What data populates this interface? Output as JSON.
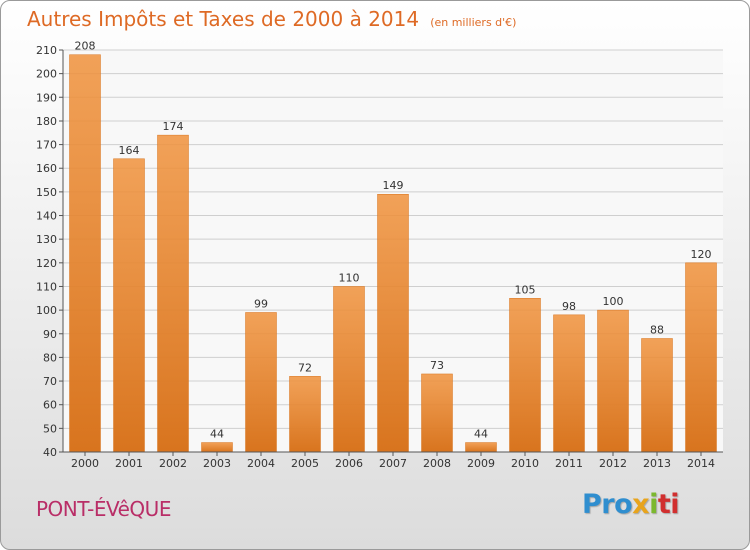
{
  "chart_data": {
    "type": "bar",
    "title": "Autres Impôts et Taxes de 2000 à 2014",
    "title_unit": "(en milliers d'€)",
    "categories": [
      "2000",
      "2001",
      "2002",
      "2003",
      "2004",
      "2005",
      "2006",
      "2007",
      "2008",
      "2009",
      "2010",
      "2011",
      "2012",
      "2013",
      "2014"
    ],
    "values": [
      208,
      164,
      174,
      44,
      99,
      72,
      110,
      149,
      73,
      44,
      105,
      98,
      100,
      88,
      120
    ],
    "ylim": [
      40,
      210
    ],
    "yticks": [
      40,
      50,
      60,
      70,
      80,
      90,
      100,
      110,
      120,
      130,
      140,
      150,
      160,
      170,
      180,
      190,
      200,
      210
    ],
    "grid": true,
    "bar_color": "#f0923c",
    "bar_color_dark": "#d8741e",
    "title_color": "#de6a25"
  },
  "commune": "PONT-ÉVêQUE",
  "logo": {
    "part1": "Pro",
    "part2": "x",
    "part3": "i",
    "part4": "ti"
  },
  "colors": {
    "commune": "#b92e67",
    "logo_blue": "#2f8ecf",
    "logo_orange": "#e8a41c",
    "logo_green": "#7cb82f",
    "logo_red": "#d12f2f"
  }
}
